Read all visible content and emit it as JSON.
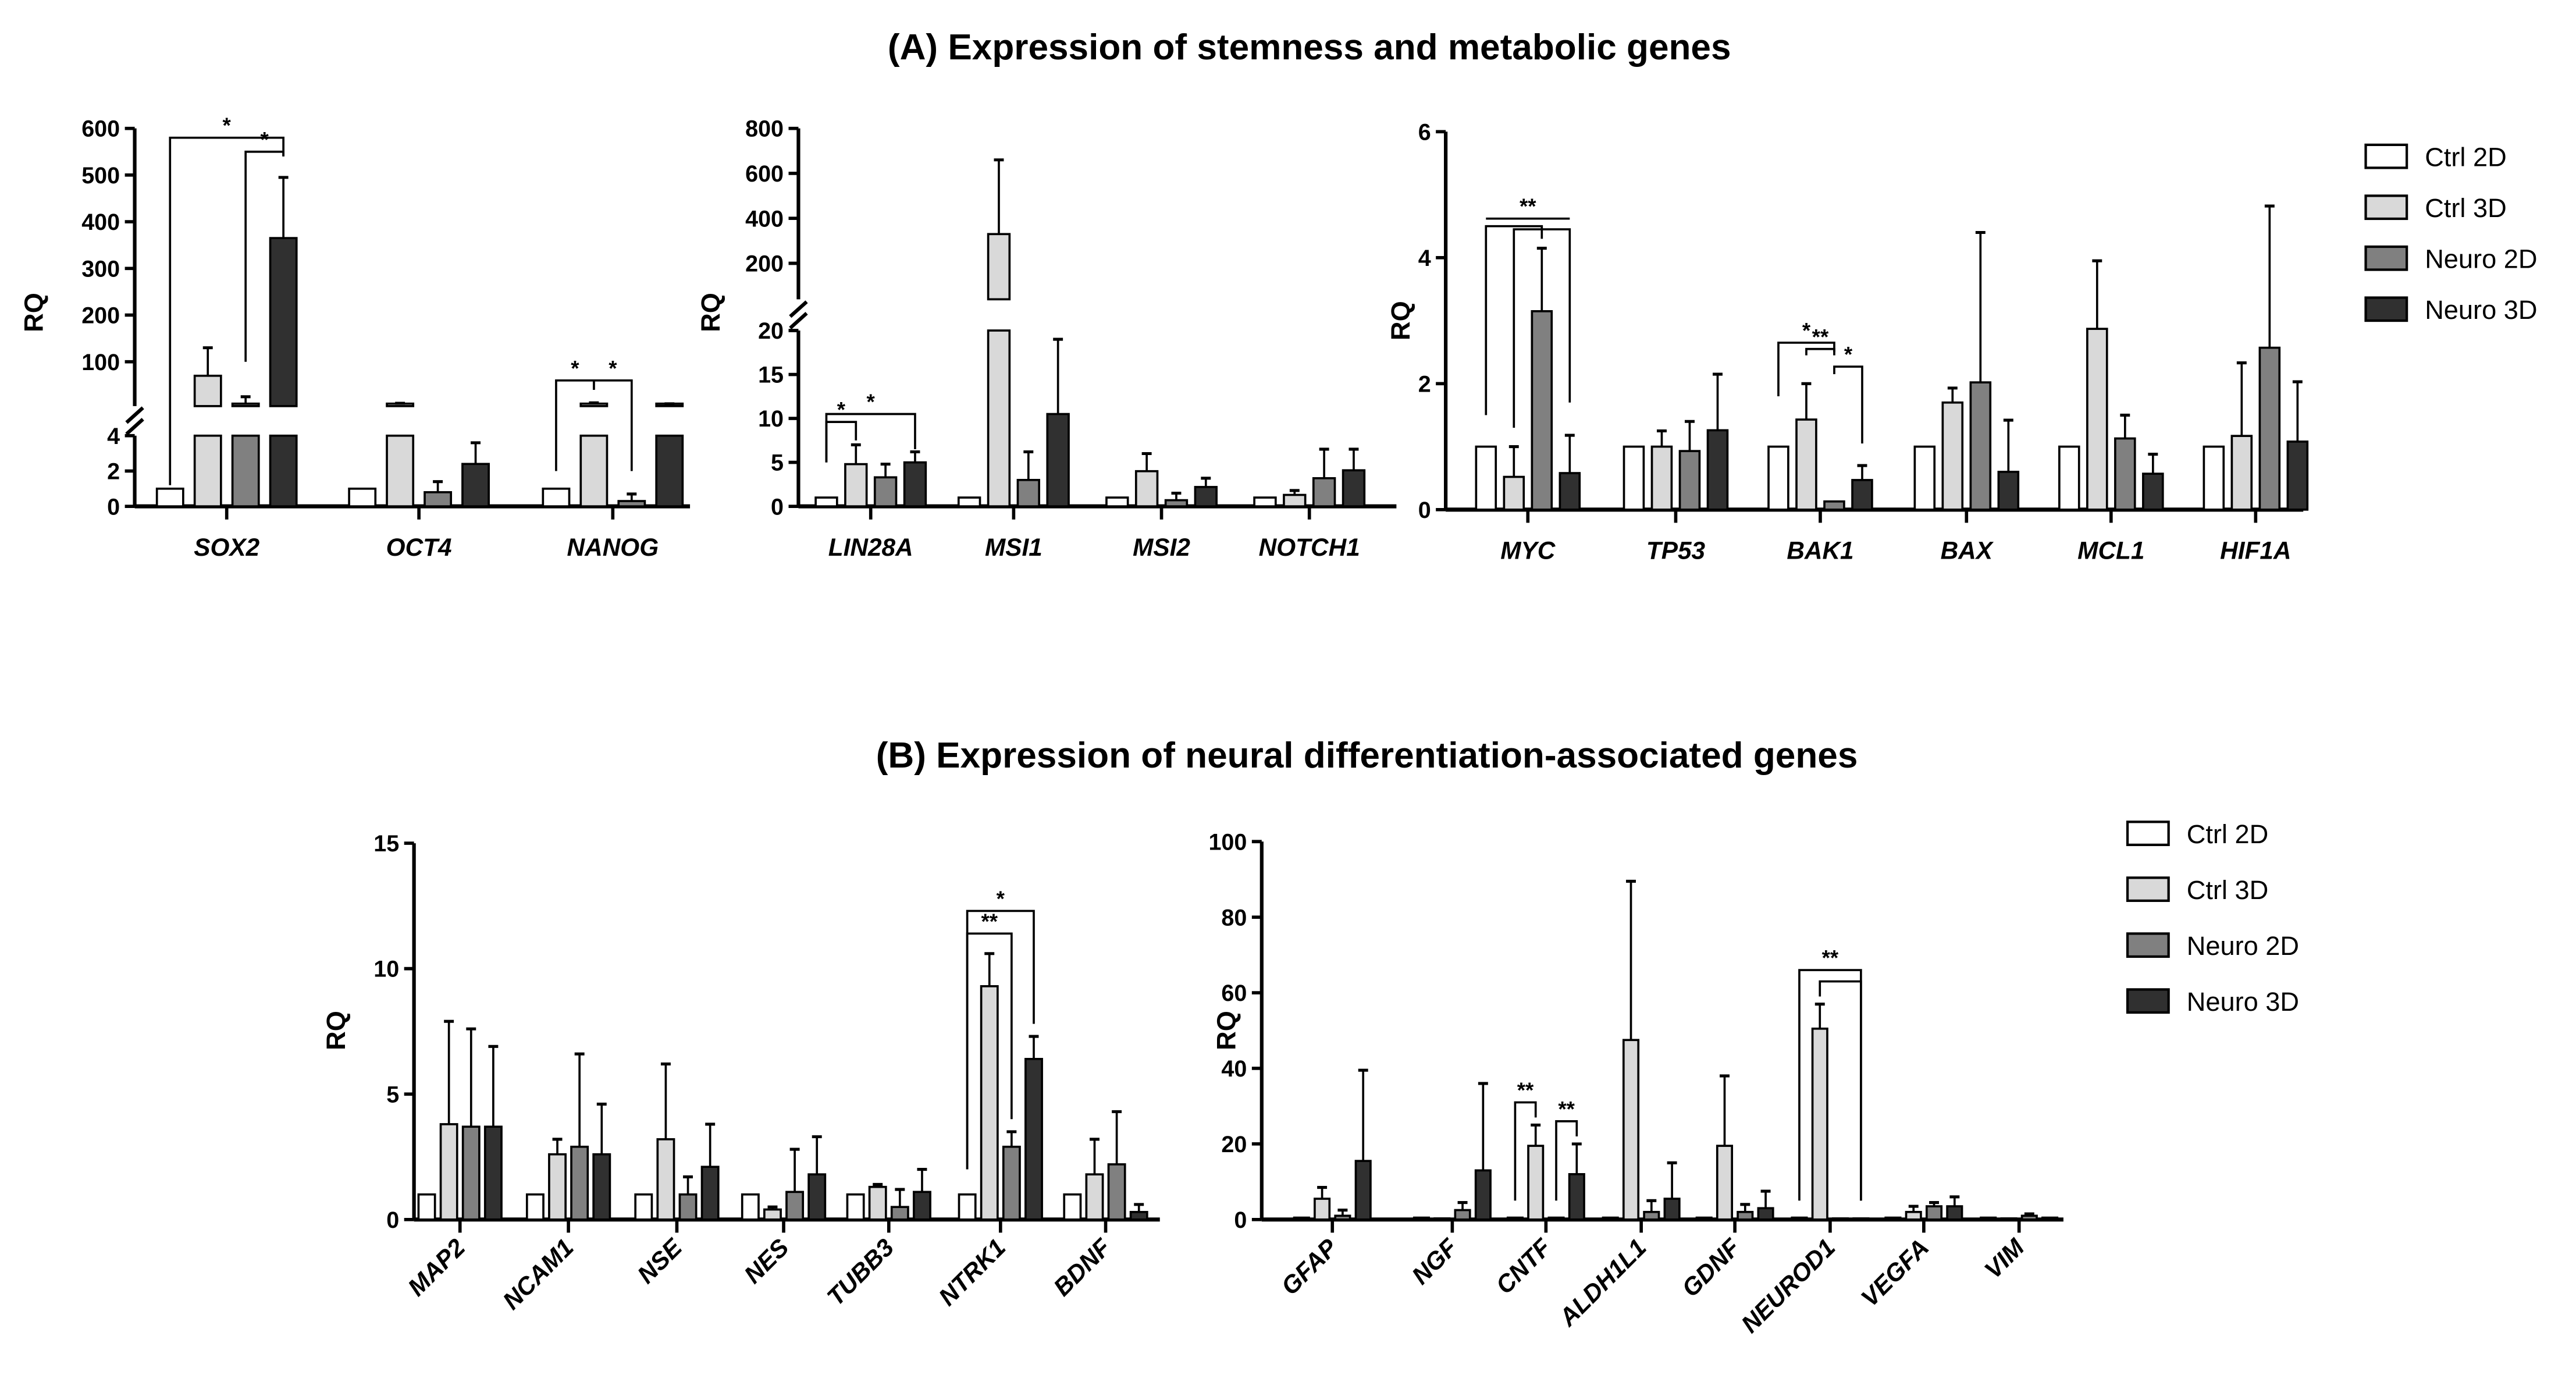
{
  "titles": {
    "a": "(A) Expression of stemness and metabolic genes",
    "b": "(B) Expression of neural differentiation-associated genes"
  },
  "legend": {
    "series": [
      "Ctrl 2D",
      "Ctrl 3D",
      "Neuro 2D",
      "Neuro 3D"
    ],
    "colors": [
      "#ffffff",
      "#d9d9d9",
      "#808080",
      "#303030"
    ]
  },
  "chart_data": [
    {
      "id": "A1",
      "type": "bar",
      "ylabel": "RQ",
      "broken_axis": true,
      "segments": [
        [
          0,
          4
        ],
        [
          5,
          600
        ]
      ],
      "yticks": [
        0,
        2,
        4,
        100,
        200,
        300,
        400,
        500,
        600
      ],
      "categories": [
        "SOX2",
        "OCT4",
        "NANOG"
      ],
      "series": [
        {
          "name": "Ctrl 2D",
          "values": [
            1,
            1,
            1
          ]
        },
        {
          "name": "Ctrl 3D",
          "values": [
            70,
            10,
            10
          ]
        },
        {
          "name": "Neuro 2D",
          "values": [
            10,
            0.8,
            0.3
          ]
        },
        {
          "name": "Neuro 3D",
          "values": [
            365,
            2.4,
            8
          ]
        }
      ],
      "error_upper": [
        [
          null,
          130,
          25,
          495
        ],
        [
          null,
          11,
          1.4,
          3.6
        ],
        [
          null,
          12,
          0.7,
          10
        ]
      ],
      "significance": [
        {
          "group": 0,
          "from": 0,
          "to": 3,
          "level": 580,
          "drop_left": 1.2,
          "drop_right": 540,
          "label": "*"
        },
        {
          "group": 0,
          "from": 2,
          "to": 3,
          "level": 550,
          "drop_left": 100,
          "drop_right": 540,
          "label": "*"
        },
        {
          "group": 2,
          "from": 0,
          "to": 1,
          "level": 60,
          "drop_left": 2,
          "drop_right": 40,
          "label": "*"
        },
        {
          "group": 2,
          "from": 1,
          "to": 2,
          "level": 60,
          "drop_left": 40,
          "drop_right": 2,
          "label": "*"
        }
      ]
    },
    {
      "id": "A2",
      "type": "bar",
      "ylabel": "RQ",
      "broken_axis": true,
      "segments": [
        [
          0,
          20
        ],
        [
          40,
          800
        ]
      ],
      "yticks": [
        0,
        5,
        10,
        15,
        20,
        200,
        400,
        600,
        800
      ],
      "categories": [
        "LIN28A",
        "MSI1",
        "MSI2",
        "NOTCH1"
      ],
      "series": [
        {
          "name": "Ctrl 2D",
          "values": [
            1,
            1,
            1,
            1
          ]
        },
        {
          "name": "Ctrl 3D",
          "values": [
            4.8,
            330,
            4,
            1.3
          ]
        },
        {
          "name": "Neuro 2D",
          "values": [
            3.3,
            3,
            0.7,
            3.2
          ]
        },
        {
          "name": "Neuro 3D",
          "values": [
            5,
            10.5,
            2.2,
            4.1
          ]
        }
      ],
      "error_upper": [
        [
          null,
          7,
          4.8,
          6.2
        ],
        [
          null,
          660,
          6.2,
          19
        ],
        [
          null,
          6,
          1.5,
          3.2
        ],
        [
          null,
          1.8,
          6.5,
          6.5
        ]
      ],
      "significance": [
        {
          "group": 0,
          "from": 0,
          "to": 3,
          "level": 10.5,
          "drop_left": 5,
          "drop_right": 6.5,
          "label": "*"
        },
        {
          "group": 0,
          "from": 0,
          "to": 1,
          "level": 9.6,
          "drop_left": 5,
          "drop_right": 7.5,
          "label": "*"
        }
      ]
    },
    {
      "id": "A3",
      "type": "bar",
      "ylabel": "RQ",
      "yrange": [
        0,
        6
      ],
      "yticks": [
        0,
        2,
        4,
        6
      ],
      "categories": [
        "MYC",
        "TP53",
        "BAK1",
        "BAX",
        "MCL1",
        "HIF1A"
      ],
      "series": [
        {
          "name": "Ctrl 2D",
          "values": [
            1,
            1,
            1,
            1,
            1,
            1
          ]
        },
        {
          "name": "Ctrl 3D",
          "values": [
            0.52,
            1,
            1.43,
            1.7,
            2.87,
            1.17
          ]
        },
        {
          "name": "Neuro 2D",
          "values": [
            3.15,
            0.93,
            0.13,
            2.02,
            1.13,
            2.57
          ]
        },
        {
          "name": "Neuro 3D",
          "values": [
            0.58,
            1.26,
            0.47,
            0.6,
            0.57,
            1.08
          ]
        }
      ],
      "error_upper": [
        [
          null,
          1,
          4.15,
          1.18
        ],
        [
          null,
          1.25,
          1.4,
          2.15
        ],
        [
          null,
          2,
          null,
          0.7
        ],
        [
          null,
          1.93,
          4.4,
          1.42
        ],
        [
          null,
          3.95,
          1.5,
          0.88
        ],
        [
          null,
          2.33,
          4.82,
          2.03
        ]
      ],
      "significance": [
        {
          "group": 0,
          "from": 0,
          "to": 3,
          "level": 4.62,
          "drop_left": 4.62,
          "drop_right": 4.62,
          "label": "**"
        },
        {
          "group": 0,
          "from": 0,
          "to": 2,
          "level": 4.5,
          "drop_left": 1.5,
          "drop_right": 4.3,
          "label": ""
        },
        {
          "group": 0,
          "from": 1,
          "to": 3,
          "level": 4.45,
          "drop_left": 1.3,
          "drop_right": 1.7,
          "label": ""
        },
        {
          "group": 2,
          "from": 0,
          "to": 2,
          "level": 2.65,
          "drop_left": 1.8,
          "drop_right": 2.5,
          "label": "*"
        },
        {
          "group": 2,
          "from": 1,
          "to": 2,
          "level": 2.55,
          "drop_left": 2.45,
          "drop_right": 2.45,
          "label": "**"
        },
        {
          "group": 2,
          "from": 2,
          "to": 3,
          "level": 2.27,
          "drop_left": 2.15,
          "drop_right": 1.05,
          "label": "*"
        }
      ]
    },
    {
      "id": "B1",
      "type": "bar",
      "ylabel": "RQ",
      "yrange": [
        0,
        15
      ],
      "yticks": [
        0,
        5,
        10,
        15
      ],
      "categories": [
        "MAP2",
        "NCAM1",
        "NSE",
        "NES",
        "TUBB3",
        "NTRK1",
        "BDNF"
      ],
      "series": [
        {
          "name": "Ctrl 2D",
          "values": [
            1,
            1,
            1,
            1,
            1,
            1,
            1
          ]
        },
        {
          "name": "Ctrl 3D",
          "values": [
            3.8,
            2.6,
            3.2,
            0.4,
            1.3,
            9.3,
            1.8
          ]
        },
        {
          "name": "Neuro 2D",
          "values": [
            3.7,
            2.9,
            1,
            1.1,
            0.5,
            2.9,
            2.2
          ]
        },
        {
          "name": "Neuro 3D",
          "values": [
            3.7,
            2.6,
            2.1,
            1.8,
            1.1,
            6.4,
            0.3
          ]
        }
      ],
      "error_upper": [
        [
          null,
          7.9,
          7.6,
          6.9
        ],
        [
          null,
          3.2,
          6.6,
          4.6
        ],
        [
          null,
          6.2,
          1.7,
          3.8
        ],
        [
          null,
          0.5,
          2.8,
          3.3
        ],
        [
          null,
          1.4,
          1.2,
          2
        ],
        [
          null,
          10.6,
          3.5,
          7.3
        ],
        [
          null,
          3.2,
          4.3,
          0.6
        ]
      ],
      "significance": [
        {
          "group": 5,
          "from": 0,
          "to": 3,
          "level": 12.3,
          "drop_left": 2,
          "drop_right": 7.8,
          "label": "*"
        },
        {
          "group": 5,
          "from": 0,
          "to": 2,
          "level": 11.4,
          "drop_left": 2,
          "drop_right": 4,
          "label": "**"
        }
      ]
    },
    {
      "id": "B2",
      "type": "bar",
      "ylabel": "RQ",
      "yrange": [
        0,
        100
      ],
      "yticks": [
        0,
        20,
        40,
        60,
        80,
        100
      ],
      "categories": [
        "GFAP",
        "NGF",
        "CNTF",
        "ALDH1L1",
        "GDNF",
        "NEUROD1",
        "VEGFA",
        "VIM"
      ],
      "series": [
        {
          "name": "Ctrl 2D",
          "values": [
            0.5,
            0.5,
            0.5,
            0.5,
            0.5,
            0.5,
            0.5,
            0.5
          ]
        },
        {
          "name": "Ctrl 3D",
          "values": [
            5.5,
            0.3,
            19.5,
            47.5,
            19.5,
            50.5,
            2,
            0.3
          ]
        },
        {
          "name": "Neuro 2D",
          "values": [
            1,
            2.5,
            0.5,
            2,
            2,
            0.3,
            3.5,
            1
          ]
        },
        {
          "name": "Neuro 3D",
          "values": [
            15.5,
            13,
            12,
            5.5,
            3,
            0.3,
            3.5,
            0.5
          ]
        }
      ],
      "error_upper": [
        [
          null,
          8.5,
          2.5,
          39.5
        ],
        [
          null,
          null,
          4.5,
          36
        ],
        [
          null,
          25,
          null,
          20
        ],
        [
          null,
          89.5,
          5,
          15
        ],
        [
          null,
          38,
          4,
          7.5
        ],
        [
          null,
          57,
          null,
          null
        ],
        [
          null,
          3.5,
          4.5,
          6
        ],
        [
          null,
          null,
          1.5,
          null
        ]
      ],
      "significance": [
        {
          "group": 2,
          "from": 0,
          "to": 1,
          "level": 31,
          "drop_left": 5,
          "drop_right": 27,
          "label": "**"
        },
        {
          "group": 2,
          "from": 2,
          "to": 3,
          "level": 26,
          "drop_left": 5,
          "drop_right": 22,
          "label": "**"
        },
        {
          "group": 5,
          "from": 0,
          "to": 3,
          "level": 66,
          "drop_left": 5,
          "drop_right": 5,
          "label": "**"
        },
        {
          "group": 5,
          "from": 1,
          "to": 3,
          "level": 63,
          "drop_left": 59,
          "drop_right": 5,
          "label": ""
        }
      ]
    }
  ]
}
